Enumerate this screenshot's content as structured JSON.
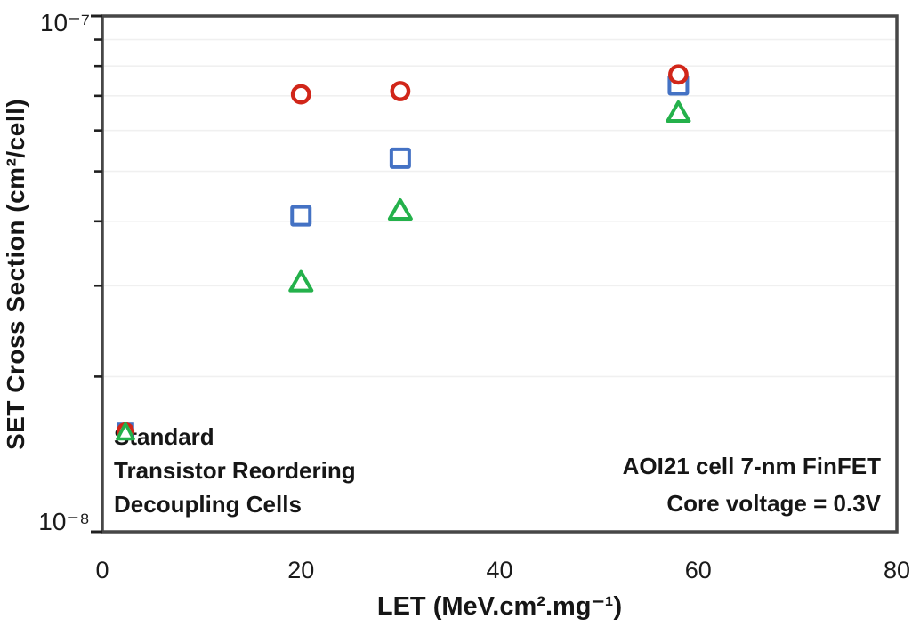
{
  "figure": {
    "background": "#ffffff",
    "text_color": "#1a1a1a",
    "border_color": "#474747",
    "grid_color": "#f0f0f0",
    "tick_color": "#1f1f1f"
  },
  "chart_data": {
    "type": "scatter",
    "title": "",
    "xlabel": "LET (MeV.cm².mg⁻¹)",
    "ylabel": "SET Cross Section (cm²/cell)",
    "xlim": [
      0,
      80
    ],
    "x_ticks": [
      0,
      20,
      40,
      60,
      80
    ],
    "y_scale": "log",
    "ylim": [
      1e-08,
      1e-07
    ],
    "y_major_ticks": [
      1e-07,
      1e-08
    ],
    "y_major_tick_labels": [
      "10⁻⁷",
      "10⁻⁸"
    ],
    "y_minor_ticks": [
      2e-08,
      3e-08,
      4e-08,
      5e-08,
      6e-08,
      7e-08,
      8e-08,
      9e-08
    ],
    "grid": "horizontal-minor",
    "legend_position": "bottom-left-inside",
    "series": [
      {
        "name": "Standard",
        "marker": "square",
        "color": "#4472C4",
        "x": [
          20,
          30,
          58
        ],
        "y": [
          4.1e-08,
          5.3e-08,
          7.35e-08
        ]
      },
      {
        "name": "Transistor Reordering",
        "marker": "circle",
        "color": "#D12619",
        "x": [
          20,
          30,
          58
        ],
        "y": [
          7.05e-08,
          7.15e-08,
          7.7e-08
        ]
      },
      {
        "name": "Decoupling Cells",
        "marker": "triangle",
        "color": "#24B14B",
        "x": [
          20,
          30,
          58
        ],
        "y": [
          3.05e-08,
          4.2e-08,
          6.5e-08
        ]
      }
    ],
    "annotation": {
      "lines": [
        "AOI21 cell 7-nm FinFET",
        "Core voltage = 0.3V"
      ]
    }
  }
}
